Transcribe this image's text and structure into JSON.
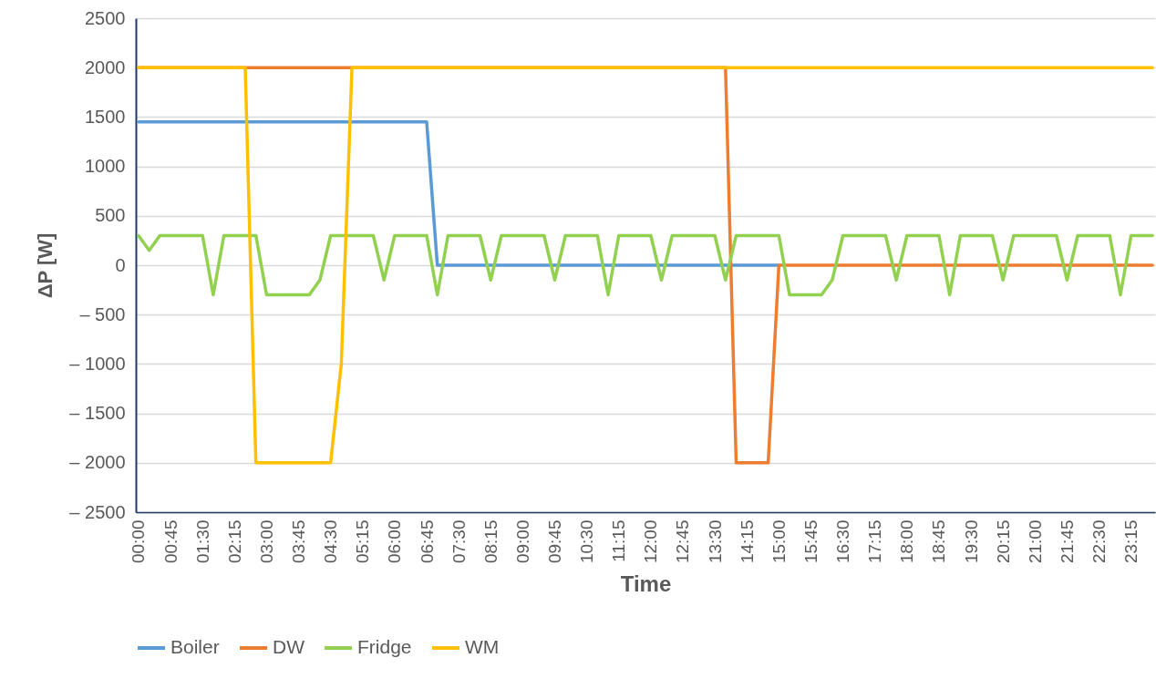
{
  "chart_data": {
    "type": "line",
    "xlabel": "Time",
    "ylabel": "ΔP [W]",
    "categories": [
      "00:00",
      null,
      null,
      "00:45",
      null,
      null,
      "01:30",
      null,
      null,
      "02:15",
      null,
      null,
      "03:00",
      null,
      null,
      "03:45",
      null,
      null,
      "04:30",
      null,
      null,
      "05:15",
      null,
      null,
      "06:00",
      null,
      null,
      "06:45",
      null,
      null,
      "07:30",
      null,
      null,
      "08:15",
      null,
      null,
      "09:00",
      null,
      null,
      "09:45",
      null,
      null,
      "10:30",
      null,
      null,
      "11:15",
      null,
      null,
      "12:00",
      null,
      null,
      "12:45",
      null,
      null,
      "13:30",
      null,
      null,
      "14:15",
      null,
      null,
      "15:00",
      null,
      null,
      "15:45",
      null,
      null,
      "16:30",
      null,
      null,
      "17:15",
      null,
      null,
      "18:00",
      null,
      null,
      "18:45",
      null,
      null,
      "19:30",
      null,
      null,
      "20:15",
      null,
      null,
      "21:00",
      null,
      null,
      "21:45",
      null,
      null,
      "22:30",
      null,
      null,
      "23:15",
      null,
      null
    ],
    "series": [
      {
        "name": "Boiler",
        "color": "#5b9bd5",
        "values": [
          1450,
          1450,
          1450,
          1450,
          1450,
          1450,
          1450,
          1450,
          1450,
          1450,
          1450,
          1450,
          1450,
          1450,
          1450,
          1450,
          1450,
          1450,
          1450,
          1450,
          1450,
          1450,
          1450,
          1450,
          1450,
          1450,
          1450,
          1450,
          0,
          0,
          0,
          0,
          0,
          0,
          0,
          0,
          0,
          0,
          0,
          0,
          0,
          0,
          0,
          0,
          0,
          0,
          0,
          0,
          0,
          0,
          0,
          0,
          0,
          0,
          0,
          0,
          0,
          0,
          0,
          0,
          0,
          null,
          null,
          null,
          null,
          null,
          null,
          null,
          null,
          null,
          null,
          null,
          null,
          null,
          null,
          null,
          null,
          null,
          null,
          null,
          null,
          null,
          null,
          null,
          null,
          null,
          null,
          null,
          null,
          null,
          null,
          null,
          null,
          null,
          null,
          null
        ]
      },
      {
        "name": "DW",
        "color": "#ed7d31",
        "values": [
          2000,
          2000,
          2000,
          2000,
          2000,
          2000,
          2000,
          2000,
          2000,
          2000,
          2000,
          2000,
          2000,
          2000,
          2000,
          2000,
          2000,
          2000,
          2000,
          2000,
          2000,
          2000,
          2000,
          2000,
          2000,
          2000,
          2000,
          2000,
          2000,
          2000,
          2000,
          2000,
          2000,
          2000,
          2000,
          2000,
          2000,
          2000,
          2000,
          2000,
          2000,
          2000,
          2000,
          2000,
          2000,
          2000,
          2000,
          2000,
          2000,
          2000,
          2000,
          2000,
          2000,
          2000,
          2000,
          2000,
          -2000,
          -2000,
          -2000,
          -2000,
          0,
          0,
          0,
          0,
          0,
          0,
          0,
          0,
          0,
          0,
          0,
          0,
          0,
          0,
          0,
          0,
          0,
          0,
          0,
          0,
          0,
          0,
          0,
          0,
          0,
          0,
          0,
          0,
          0,
          0,
          0,
          0,
          0,
          0,
          0,
          0
        ]
      },
      {
        "name": "Fridge",
        "color": "#92d050",
        "values": [
          300,
          150,
          300,
          300,
          300,
          300,
          300,
          -300,
          300,
          300,
          300,
          300,
          -300,
          -300,
          -300,
          -300,
          -300,
          -150,
          300,
          300,
          300,
          300,
          300,
          -150,
          300,
          300,
          300,
          300,
          -300,
          300,
          300,
          300,
          300,
          -150,
          300,
          300,
          300,
          300,
          300,
          -150,
          300,
          300,
          300,
          300,
          -300,
          300,
          300,
          300,
          300,
          -150,
          300,
          300,
          300,
          300,
          300,
          -150,
          300,
          300,
          300,
          300,
          300,
          -300,
          -300,
          -300,
          -300,
          -150,
          300,
          300,
          300,
          300,
          300,
          -150,
          300,
          300,
          300,
          300,
          -300,
          300,
          300,
          300,
          300,
          -150,
          300,
          300,
          300,
          300,
          300,
          -150,
          300,
          300,
          300,
          300,
          -300,
          300,
          300,
          300
        ]
      },
      {
        "name": "WM",
        "color": "#ffc000",
        "values": [
          2000,
          2000,
          2000,
          2000,
          2000,
          2000,
          2000,
          2000,
          2000,
          2000,
          2000,
          -2000,
          -2000,
          -2000,
          -2000,
          -2000,
          -2000,
          -2000,
          -2000,
          -1000,
          2000,
          2000,
          2000,
          2000,
          2000,
          2000,
          2000,
          2000,
          2000,
          2000,
          2000,
          2000,
          2000,
          2000,
          2000,
          2000,
          2000,
          2000,
          2000,
          2000,
          2000,
          2000,
          2000,
          2000,
          2000,
          2000,
          2000,
          2000,
          2000,
          2000,
          2000,
          2000,
          2000,
          2000,
          2000,
          2000,
          2000,
          2000,
          2000,
          2000,
          2000,
          2000,
          2000,
          2000,
          2000,
          2000,
          2000,
          2000,
          2000,
          2000,
          2000,
          2000,
          2000,
          2000,
          2000,
          2000,
          2000,
          2000,
          2000,
          2000,
          2000,
          2000,
          2000,
          2000,
          2000,
          2000,
          2000,
          2000,
          2000,
          2000,
          2000,
          2000,
          2000,
          2000,
          2000,
          2000
        ]
      }
    ],
    "ylim": [
      -2500,
      2500
    ],
    "yticks": [
      {
        "value": -2500,
        "label": "– 2500"
      },
      {
        "value": -2000,
        "label": "– 2000"
      },
      {
        "value": -1500,
        "label": "– 1500"
      },
      {
        "value": -1000,
        "label": "– 1000"
      },
      {
        "value": -500,
        "label": "– 500"
      },
      0,
      500,
      1000,
      1500,
      2000,
      2500
    ],
    "grid": "y",
    "legend": "bottom",
    "line_style": "solid"
  }
}
